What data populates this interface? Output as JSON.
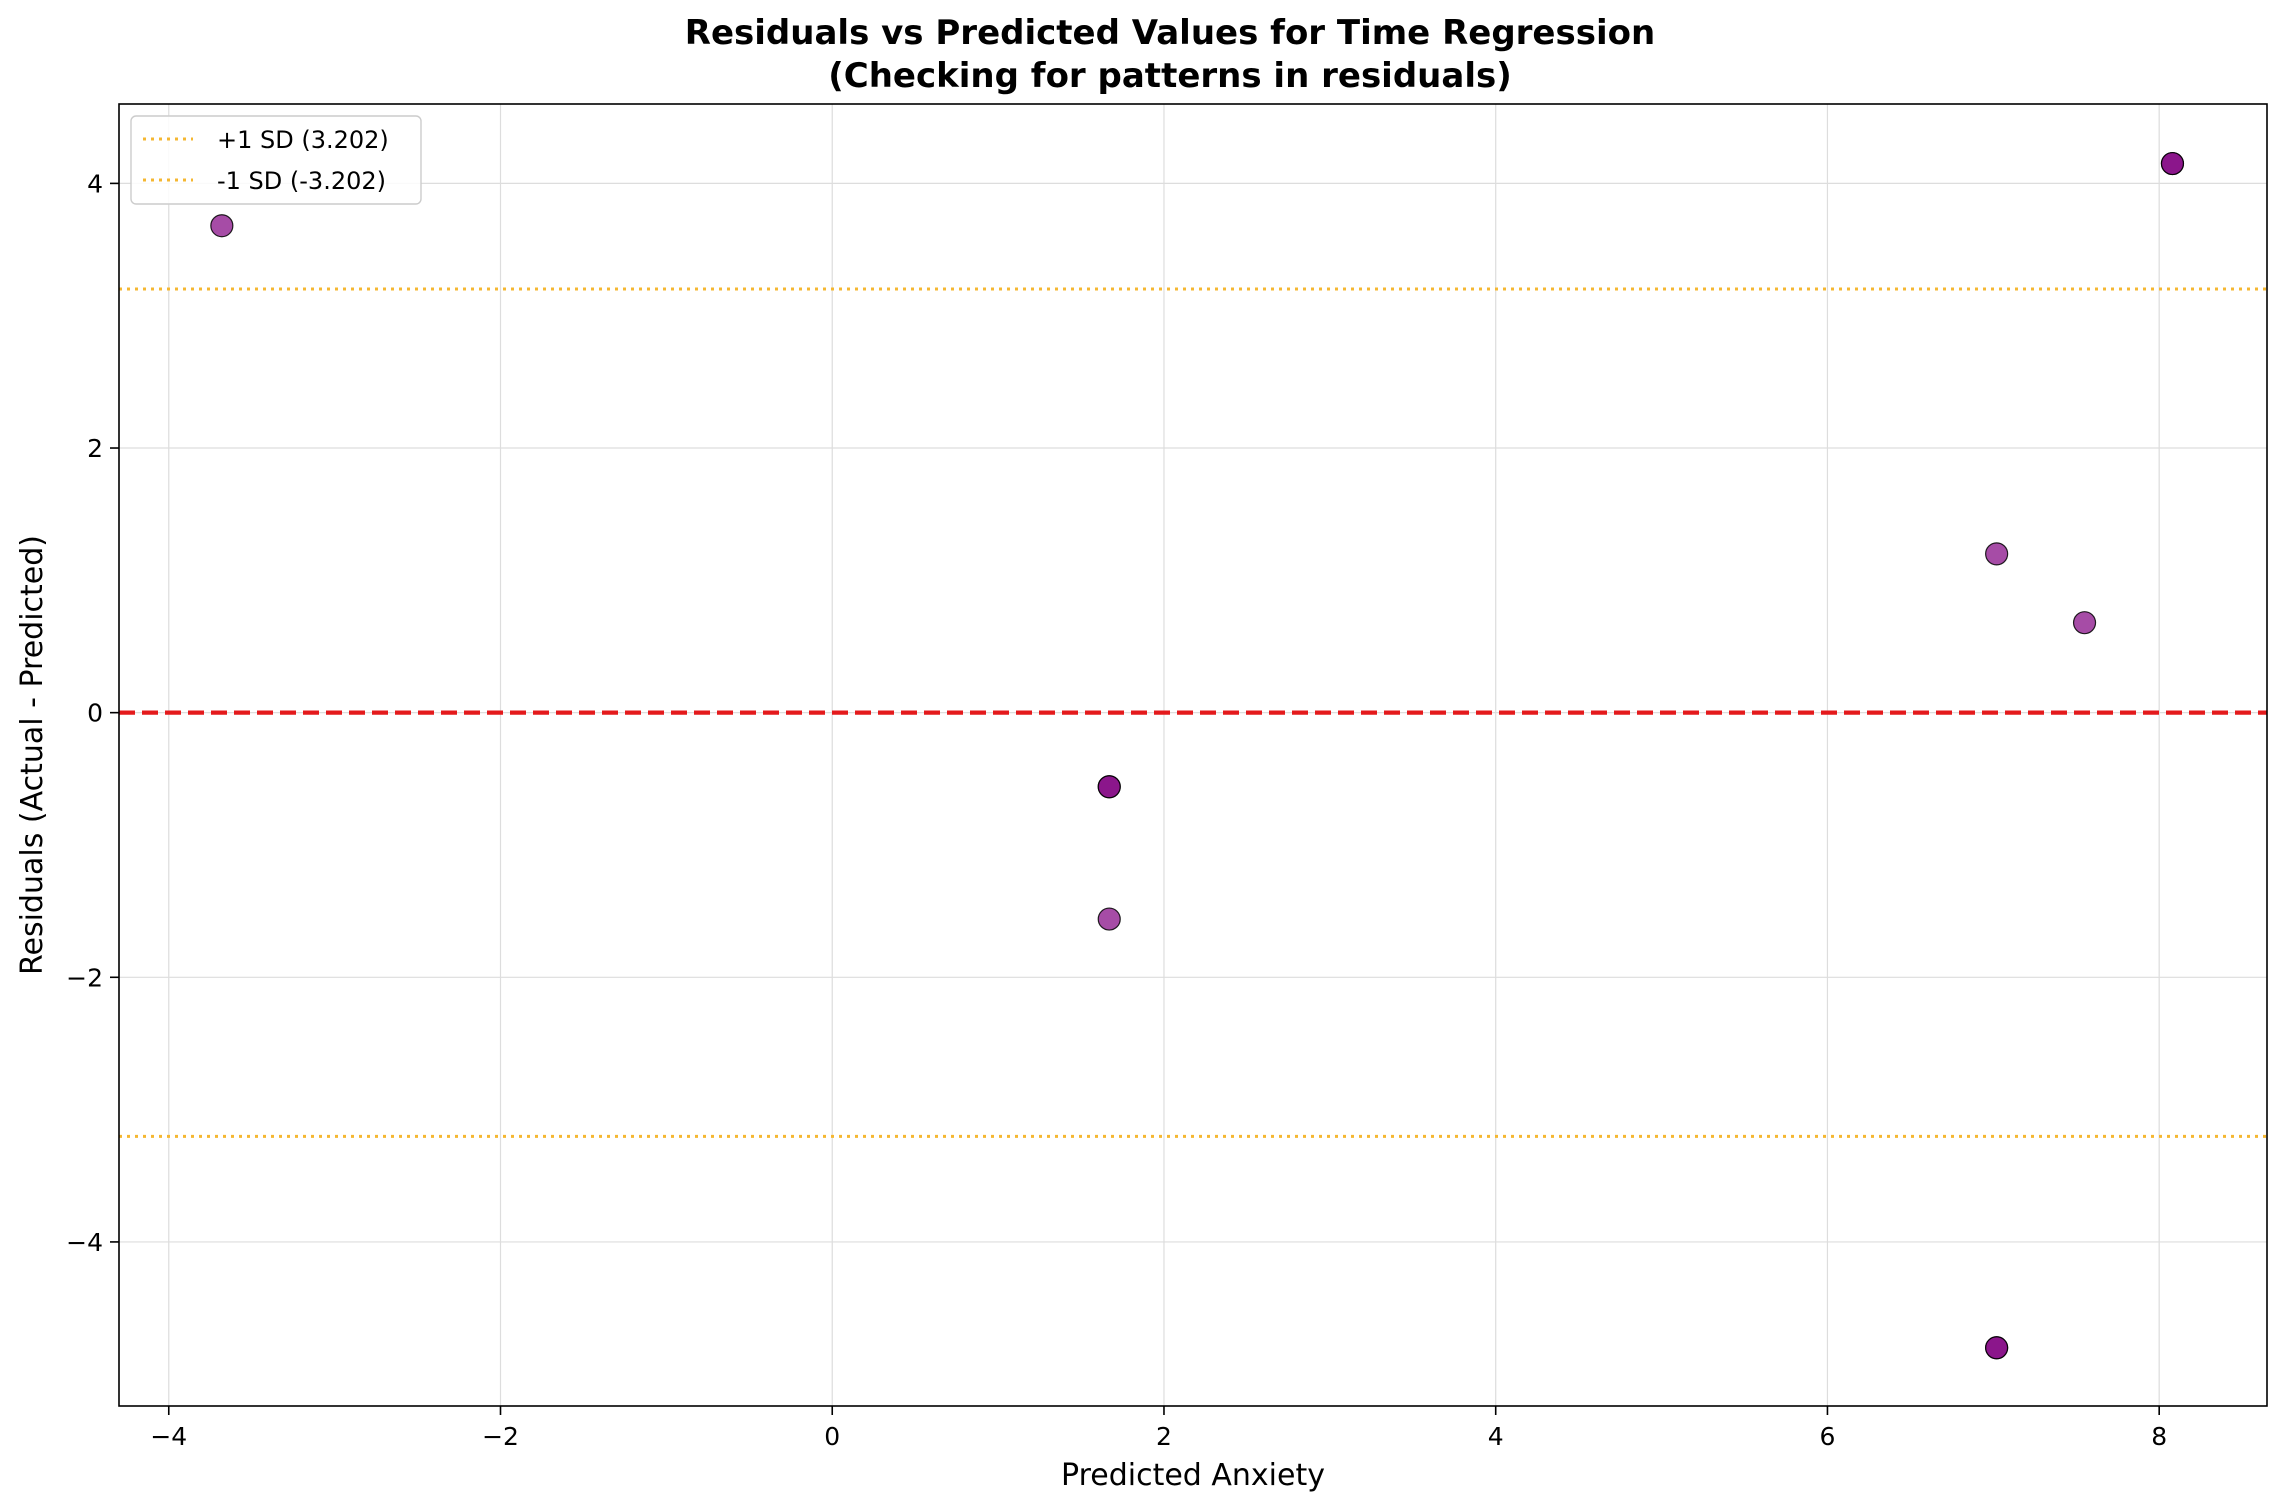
{
  "chart_data": {
    "type": "scatter",
    "title": "Residuals vs Predicted Values for Time Regression",
    "subtitle": "(Checking for patterns in residuals)",
    "xlabel": "Predicted Anxiety",
    "ylabel": "Residuals (Actual - Predicted)",
    "xlim": [
      -4.3,
      8.65
    ],
    "ylim": [
      -5.24,
      4.6
    ],
    "xticks": [
      -4,
      -2,
      0,
      2,
      4,
      6,
      8
    ],
    "yticks": [
      -4,
      -2,
      0,
      2,
      4
    ],
    "xtick_labels": [
      "−4",
      "−2",
      "0",
      "2",
      "4",
      "6",
      "8"
    ],
    "ytick_labels": [
      "−4",
      "−2",
      "0",
      "2",
      "4"
    ],
    "grid": true,
    "legend_position": "top-left",
    "points": [
      {
        "x": -3.68,
        "y": 3.68
      },
      {
        "x": 1.67,
        "y": -0.56
      },
      {
        "x": 1.67,
        "y": -1.56
      },
      {
        "x": 1.67,
        "y": -0.56
      },
      {
        "x": 7.02,
        "y": 1.2
      },
      {
        "x": 7.02,
        "y": -4.8
      },
      {
        "x": 7.02,
        "y": -4.8
      },
      {
        "x": 7.55,
        "y": 0.68
      },
      {
        "x": 8.08,
        "y": 4.15
      },
      {
        "x": 8.08,
        "y": 4.15
      }
    ],
    "reference_lines": [
      {
        "y": 0,
        "style": "dashed",
        "color": "#e41a1c",
        "label": ""
      },
      {
        "y": 3.202,
        "style": "dotted",
        "color": "#f5b731",
        "label": "+1 SD (3.202)"
      },
      {
        "y": -3.202,
        "style": "dotted",
        "color": "#f5b731",
        "label": "-1 SD (-3.202)"
      }
    ],
    "point_color": "#800080",
    "point_edge_color": "#000000"
  }
}
